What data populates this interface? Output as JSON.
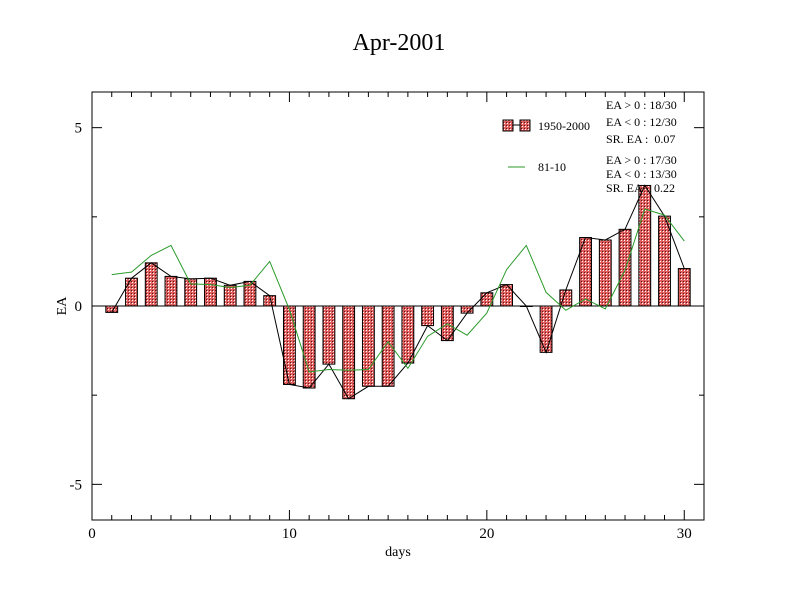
{
  "chart_data": {
    "type": "bar",
    "title": "Apr-2001",
    "xlabel": "days",
    "ylabel": "EA",
    "xlim": [
      0,
      31
    ],
    "ylim": [
      -6,
      6
    ],
    "xticks": [
      0,
      10,
      20,
      30
    ],
    "yticks": [
      -5,
      0,
      5
    ],
    "x": [
      1,
      2,
      3,
      4,
      5,
      6,
      7,
      8,
      9,
      10,
      11,
      12,
      13,
      14,
      15,
      16,
      17,
      18,
      19,
      20,
      21,
      22,
      23,
      24,
      25,
      26,
      27,
      28,
      29,
      30
    ],
    "series": [
      {
        "name": "1950-2000",
        "kind": "bar",
        "color": "#e06060",
        "values": [
          -0.18,
          0.78,
          1.21,
          0.83,
          0.76,
          0.78,
          0.58,
          0.69,
          0.29,
          -2.2,
          -2.3,
          -1.63,
          -2.6,
          -2.25,
          -2.25,
          -1.6,
          -0.55,
          -0.97,
          -0.2,
          0.37,
          0.6,
          0.0,
          -1.3,
          0.45,
          1.92,
          1.85,
          2.15,
          3.38,
          2.52,
          1.05
        ]
      },
      {
        "name": "",
        "kind": "line",
        "color": "#000000",
        "values": [
          -0.18,
          0.78,
          1.21,
          0.83,
          0.76,
          0.78,
          0.58,
          0.69,
          0.29,
          -2.2,
          -2.3,
          -1.63,
          -2.6,
          -2.25,
          -2.25,
          -1.6,
          -0.55,
          -0.97,
          -0.2,
          0.37,
          0.6,
          0.0,
          -1.3,
          0.45,
          1.92,
          1.85,
          2.15,
          3.38,
          2.52,
          1.05
        ]
      },
      {
        "name": "81-10",
        "kind": "line",
        "color": "#2a9a2a",
        "values": [
          0.88,
          0.95,
          1.42,
          1.7,
          0.62,
          0.6,
          0.52,
          0.58,
          1.25,
          -0.1,
          -1.85,
          -1.78,
          -1.8,
          -1.78,
          -1.0,
          -1.75,
          -0.85,
          -0.5,
          -0.82,
          -0.2,
          1.02,
          1.7,
          0.38,
          -0.12,
          0.2,
          -0.08,
          1.0,
          2.72,
          2.55,
          1.82
        ]
      }
    ],
    "legend": {
      "placement": "top-right",
      "items": [
        {
          "label": "1950-2000",
          "symbol": "bar"
        },
        {
          "label": "81-10",
          "symbol": "line"
        }
      ]
    },
    "annotations": [
      [
        "EA > 0 : 18/30",
        "EA < 0 : 12/30",
        "SR. EA :  0.07"
      ],
      [
        "EA > 0 : 17/30",
        "EA < 0 : 13/30",
        "SR. EA    0.22"
      ]
    ],
    "grid": false
  }
}
